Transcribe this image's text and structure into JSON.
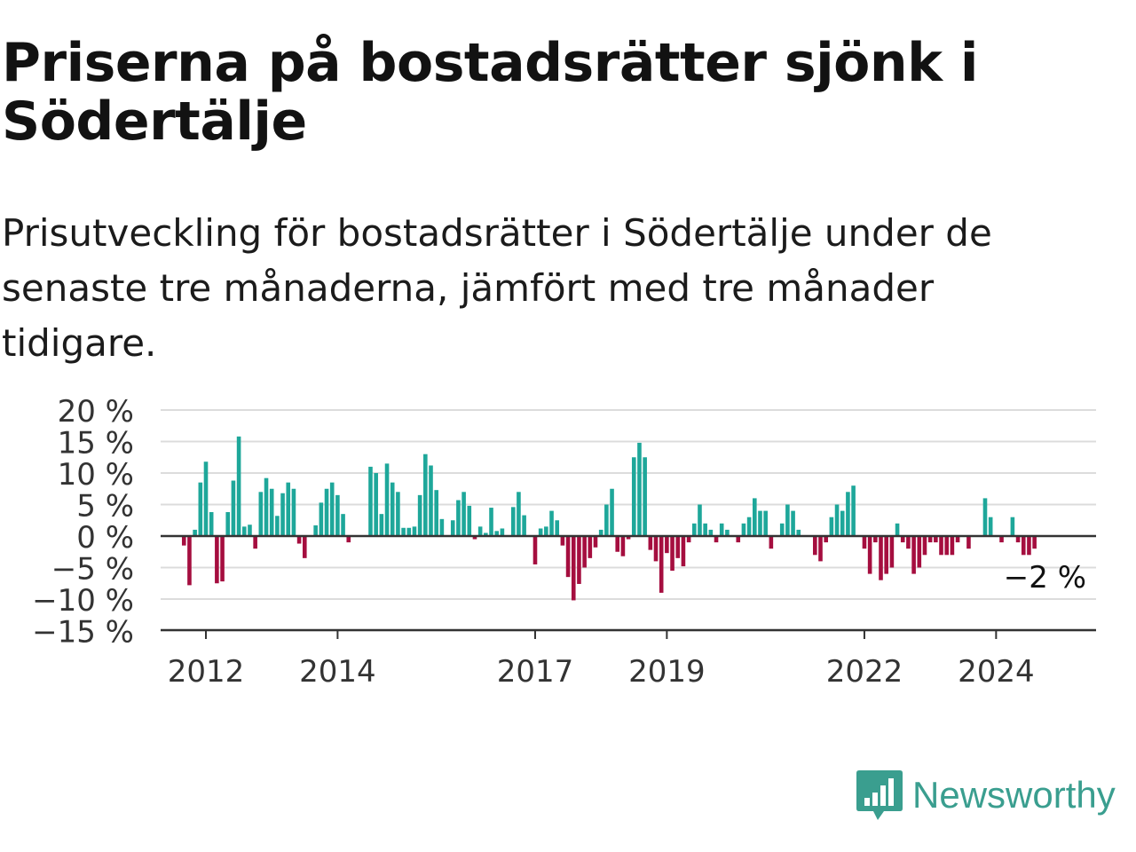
{
  "title": "Priserna på bostadsrätter sjönk i Södertälje",
  "subtitle": "Prisutveckling för bostadsrätter i Södertälje under de senaste tre månaderna, jämfört med tre månader tidigare.",
  "brand": {
    "name": "Newsworthy",
    "icon": "newsworthy-logo-icon",
    "color": "#3a9e8f"
  },
  "chart_data": {
    "type": "bar",
    "x_start": "2011-09",
    "frequency": "monthly",
    "y_ticks": [
      "20 %",
      "15 %",
      "10 %",
      "5 %",
      "0 %",
      "−5 %",
      "−10 %",
      "−15 %"
    ],
    "y_tick_values": [
      20,
      15,
      10,
      5,
      0,
      -5,
      -10,
      -15
    ],
    "ylim": [
      -15,
      20
    ],
    "x_ticks": [
      {
        "label": "2012",
        "date": "2012-01"
      },
      {
        "label": "2014",
        "date": "2014-01"
      },
      {
        "label": "2017",
        "date": "2017-01"
      },
      {
        "label": "2019",
        "date": "2019-01"
      },
      {
        "label": "2022",
        "date": "2022-01"
      },
      {
        "label": "2024",
        "date": "2024-01"
      }
    ],
    "grid": true,
    "colors": {
      "positive": "#1ea79a",
      "negative": "#a50e3f",
      "grid": "#dcdcdc",
      "axis": "#333333"
    },
    "annotation": {
      "text": "−2 %",
      "value": -2
    },
    "values": [
      -1.5,
      -7.8,
      1.0,
      8.5,
      11.8,
      3.8,
      -7.5,
      -7.2,
      3.8,
      8.8,
      15.8,
      1.5,
      1.8,
      -2.0,
      7.0,
      9.2,
      7.5,
      3.2,
      6.8,
      8.5,
      7.5,
      -1.2,
      -3.5,
      0.0,
      1.7,
      5.3,
      7.5,
      8.5,
      6.5,
      3.5,
      -1.0,
      0.0,
      0.0,
      0.0,
      11.0,
      10.0,
      3.5,
      11.5,
      8.5,
      7.0,
      1.3,
      1.3,
      1.5,
      6.5,
      13.0,
      11.2,
      7.3,
      2.7,
      0.0,
      2.5,
      5.7,
      7.0,
      4.8,
      -0.5,
      1.5,
      0.5,
      4.5,
      0.8,
      1.2,
      0.0,
      4.6,
      7.0,
      3.3,
      0.0,
      -4.5,
      1.2,
      1.5,
      4.0,
      2.5,
      -1.5,
      -6.5,
      -10.2,
      -7.6,
      -5.0,
      -3.5,
      -1.8,
      1.0,
      5.0,
      7.5,
      -2.5,
      -3.2,
      -0.5,
      12.5,
      14.8,
      12.5,
      -2.2,
      -4.0,
      -9.0,
      -2.7,
      -5.5,
      -3.5,
      -4.8,
      -1.0,
      2.0,
      5.0,
      2.0,
      1.0,
      -1.0,
      2.0,
      1.0,
      0.0,
      -1.0,
      2.0,
      3.0,
      6.0,
      4.0,
      4.0,
      -2.0,
      0.0,
      2.0,
      5.0,
      4.0,
      1.0,
      0.0,
      0.0,
      -3.0,
      -4.0,
      -1.0,
      3.0,
      5.0,
      4.0,
      7.0,
      8.0,
      0.0,
      -2.0,
      -6.0,
      -1.0,
      -7.0,
      -6.0,
      -5.0,
      2.0,
      -1.0,
      -2.0,
      -6.0,
      -5.0,
      -3.0,
      -1.0,
      -1.0,
      -3.0,
      -3.0,
      -3.0,
      -1.0,
      0.0,
      -2.0,
      0.0,
      0.0,
      6.0,
      3.0,
      0.0,
      -1.0,
      0.0,
      3.0,
      -1.0,
      -3.0,
      -3.0,
      -2.0
    ]
  }
}
